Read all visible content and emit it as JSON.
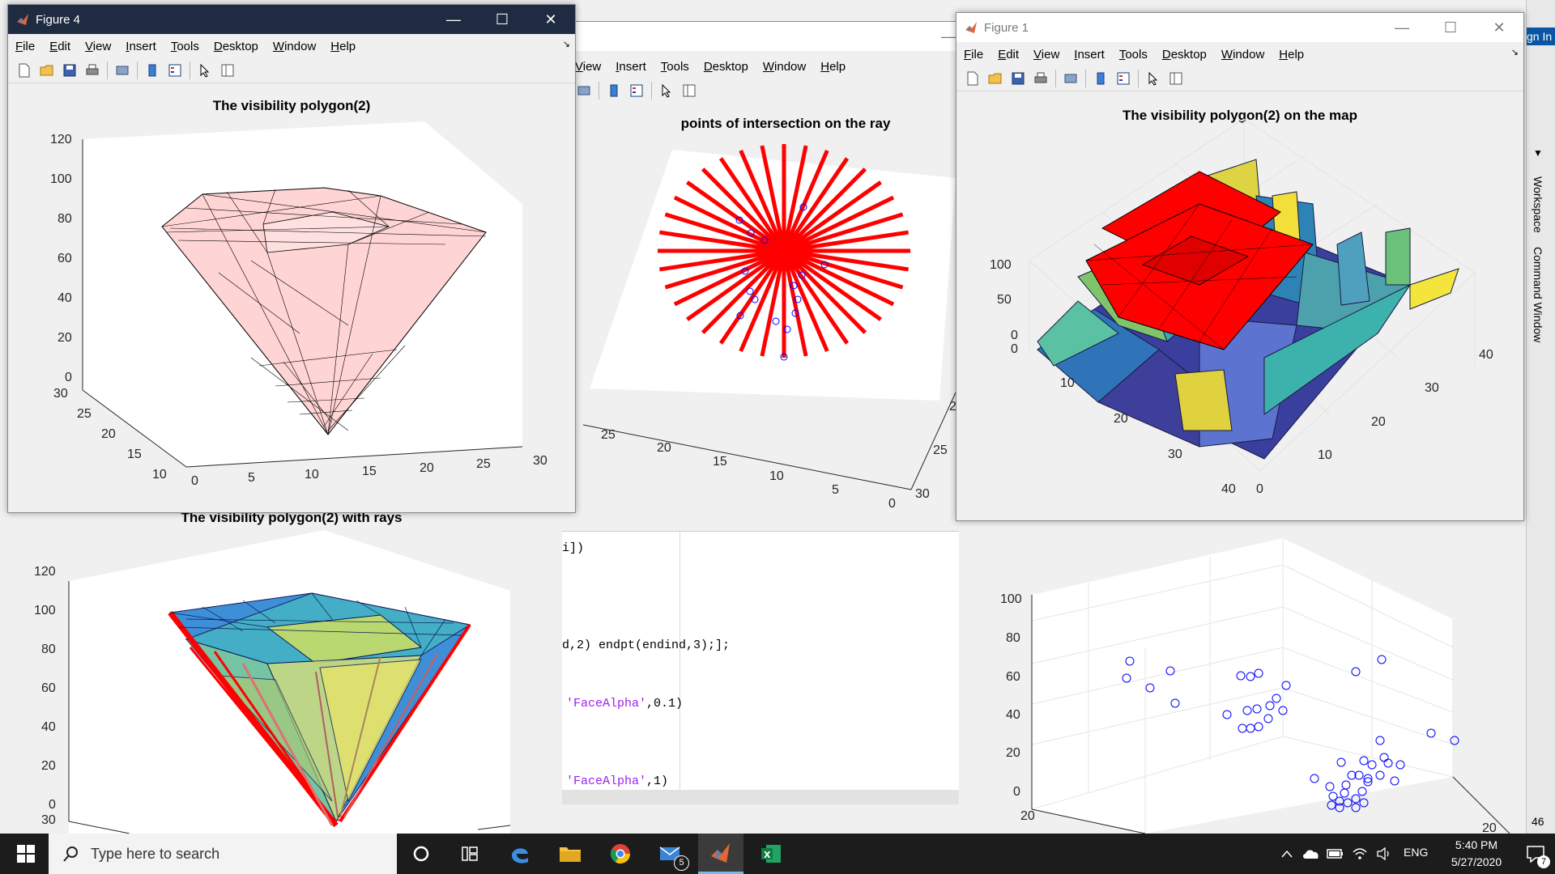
{
  "menu_items": [
    "File",
    "Edit",
    "View",
    "Insert",
    "Tools",
    "Desktop",
    "Window",
    "Help"
  ],
  "bg_menu_items": [
    "View",
    "Insert",
    "Tools",
    "Desktop",
    "Window",
    "Help"
  ],
  "figure4": {
    "title": "Figure 4",
    "plot_title": "The visibility polygon(2)",
    "z_ticks": [
      "120",
      "100",
      "80",
      "60",
      "40",
      "20",
      "0"
    ],
    "y_ticks": [
      "30",
      "25",
      "20",
      "15",
      "10"
    ],
    "x_ticks": [
      "0",
      "5",
      "10",
      "15",
      "20",
      "25",
      "30"
    ]
  },
  "center_figure": {
    "plot_title": "points of intersection on the ray",
    "left_ticks": [
      "25",
      "20",
      "15",
      "10",
      "5",
      "0"
    ],
    "right_ticks": [
      "30",
      "25",
      "2"
    ]
  },
  "figure1": {
    "title": "Figure 1",
    "plot_title": "The visibility polygon(2) on the map",
    "z_ticks": [
      "100",
      "50",
      "0"
    ],
    "left_ticks": [
      "0",
      "10",
      "20",
      "30",
      "40"
    ],
    "right_ticks": [
      "40",
      "30",
      "20",
      "10",
      "0"
    ]
  },
  "rays_figure": {
    "plot_title": "The visibility polygon(2) with rays",
    "z_ticks": [
      "120",
      "100",
      "80",
      "60",
      "40",
      "20",
      "0"
    ],
    "y_tick": "30"
  },
  "scatter_figure": {
    "z_ticks": [
      "100",
      "80",
      "60",
      "40",
      "20",
      "0"
    ],
    "y_tick": "20",
    "x_tick": "20"
  },
  "code_lines": [
    {
      "pre": "i])",
      "str": "",
      "post": ""
    },
    {
      "pre": "d,2) endpt(endind,3);];",
      "str": "",
      "post": ""
    },
    {
      "pre": "",
      "str": "'FaceAlpha'",
      "post": ",0.1)"
    },
    {
      "pre": "",
      "str": "'FaceAlpha'",
      "post": ",1)"
    }
  ],
  "side_panel": {
    "tab_workspace": "Workspace",
    "tab_command": "Command Window",
    "sign_in": "gn In",
    "line_number": "46"
  },
  "taskbar": {
    "search_placeholder": "Type here to search",
    "mail_badge": "5",
    "language": "ENG",
    "time": "5:40 PM",
    "date": "5/27/2020",
    "notification_count": "7"
  },
  "colors": {
    "ray_red": "#ff0000",
    "marker_blue": "#0000ff",
    "polygon_pink": "#ffd4d4",
    "taskbar_bg": "#1c1c1c",
    "figure4_titlebar": "#1f2b40"
  }
}
